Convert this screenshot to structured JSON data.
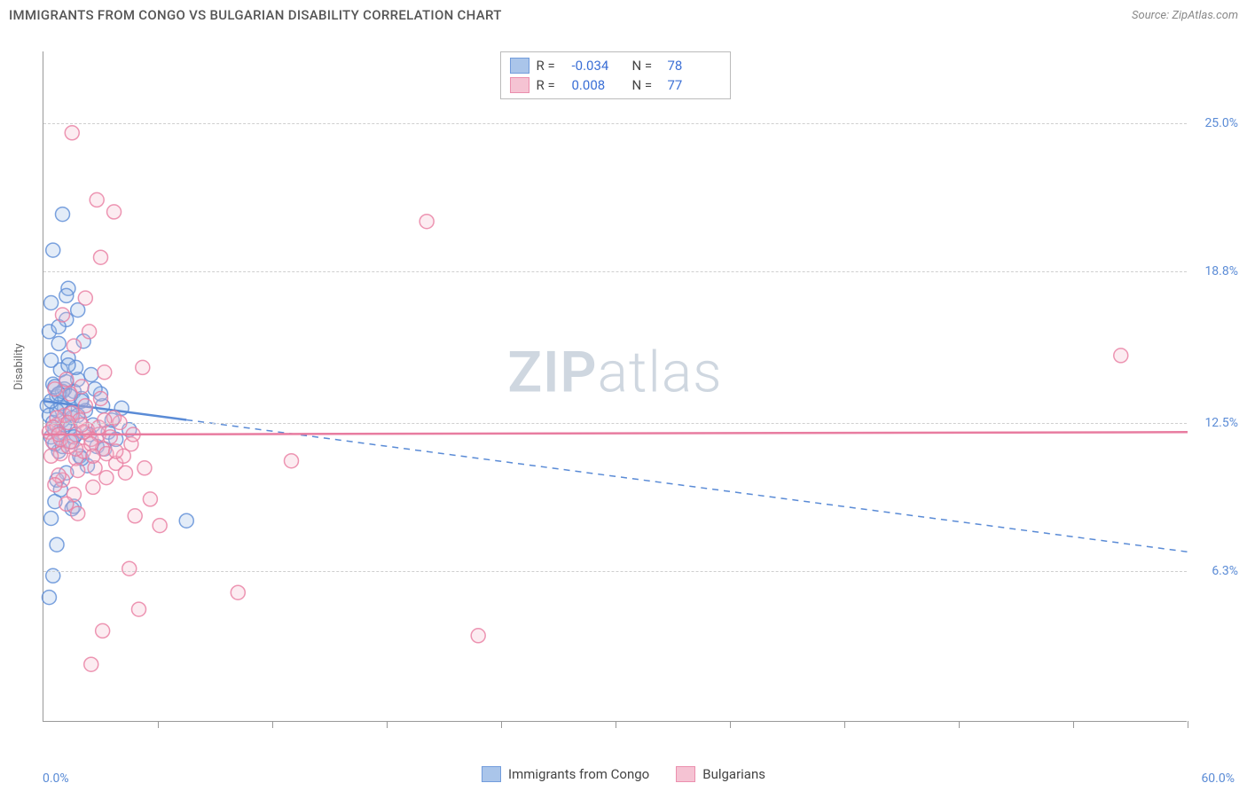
{
  "title": "IMMIGRANTS FROM CONGO VS BULGARIAN DISABILITY CORRELATION CHART",
  "source_label": "Source:",
  "source_name": "ZipAtlas.com",
  "y_axis_label": "Disability",
  "watermark_prefix": "ZIP",
  "watermark_suffix": "atlas",
  "chart": {
    "type": "scatter",
    "xlim": [
      0,
      60
    ],
    "ylim": [
      0,
      28
    ],
    "x_min_label": "0.0%",
    "x_max_label": "60.0%",
    "y_ticks": [
      {
        "value": 6.3,
        "label": "6.3%"
      },
      {
        "value": 12.5,
        "label": "12.5%"
      },
      {
        "value": 18.8,
        "label": "18.8%"
      },
      {
        "value": 25.0,
        "label": "25.0%"
      }
    ],
    "x_tick_positions": [
      6,
      12,
      18,
      24,
      30,
      36,
      42,
      48,
      54,
      60
    ],
    "grid_color": "#cfcfcf",
    "background_color": "#ffffff",
    "marker_radius": 8,
    "marker_stroke_width": 1.5,
    "marker_fill_opacity": 0.28,
    "series": [
      {
        "name": "Immigrants from Congo",
        "color_stroke": "#5a8bd6",
        "color_fill": "#9cbce7",
        "R": "-0.034",
        "N": "78",
        "regression": {
          "x1": 0,
          "y1": 13.4,
          "x2": 60,
          "y2": 7.1,
          "solid_until_x": 7.5
        },
        "points": [
          [
            0.2,
            13.2
          ],
          [
            0.3,
            12.8
          ],
          [
            0.4,
            11.9
          ],
          [
            0.5,
            14.1
          ],
          [
            0.6,
            12.2
          ],
          [
            0.7,
            13.6
          ],
          [
            0.8,
            11.3
          ],
          [
            0.9,
            14.7
          ],
          [
            1.0,
            12.6
          ],
          [
            1.1,
            13.1
          ],
          [
            1.2,
            10.4
          ],
          [
            1.3,
            15.2
          ],
          [
            1.4,
            12.9
          ],
          [
            1.5,
            11.7
          ],
          [
            1.6,
            13.8
          ],
          [
            1.7,
            12.0
          ],
          [
            1.8,
            14.3
          ],
          [
            1.9,
            11.1
          ],
          [
            2.0,
            13.5
          ],
          [
            0.6,
            9.2
          ],
          [
            0.7,
            10.1
          ],
          [
            0.8,
            15.8
          ],
          [
            0.3,
            16.3
          ],
          [
            1.2,
            16.8
          ],
          [
            0.4,
            8.5
          ],
          [
            1.5,
            8.9
          ],
          [
            0.5,
            19.7
          ],
          [
            1.8,
            17.2
          ],
          [
            2.3,
            10.7
          ],
          [
            2.5,
            14.5
          ],
          [
            2.8,
            11.5
          ],
          [
            3.1,
            13.2
          ],
          [
            3.4,
            12.1
          ],
          [
            1.0,
            21.2
          ],
          [
            1.3,
            18.1
          ],
          [
            0.4,
            17.5
          ],
          [
            0.9,
            9.7
          ],
          [
            1.6,
            9.0
          ],
          [
            2.1,
            15.9
          ],
          [
            0.7,
            7.4
          ],
          [
            3.8,
            11.8
          ],
          [
            7.5,
            8.4
          ],
          [
            0.3,
            5.2
          ],
          [
            0.5,
            6.1
          ],
          [
            1.1,
            13.9
          ],
          [
            1.4,
            12.3
          ],
          [
            1.7,
            14.8
          ],
          [
            2.0,
            11.0
          ],
          [
            0.4,
            15.1
          ],
          [
            0.8,
            16.5
          ],
          [
            1.2,
            17.8
          ],
          [
            0.6,
            11.6
          ],
          [
            0.9,
            13.3
          ],
          [
            1.3,
            14.9
          ],
          [
            1.5,
            12.7
          ],
          [
            2.2,
            13.0
          ],
          [
            2.6,
            12.4
          ],
          [
            3.0,
            13.7
          ],
          [
            0.5,
            12.5
          ],
          [
            0.7,
            13.0
          ],
          [
            0.8,
            12.1
          ],
          [
            1.0,
            13.8
          ],
          [
            1.1,
            12.4
          ],
          [
            1.4,
            13.6
          ],
          [
            1.6,
            11.9
          ],
          [
            1.8,
            12.8
          ],
          [
            2.0,
            13.4
          ],
          [
            2.4,
            12.0
          ],
          [
            2.7,
            13.9
          ],
          [
            3.2,
            11.4
          ],
          [
            3.6,
            12.6
          ],
          [
            4.1,
            13.1
          ],
          [
            4.5,
            12.2
          ],
          [
            0.4,
            13.4
          ],
          [
            0.6,
            14.0
          ],
          [
            0.8,
            13.7
          ],
          [
            1.0,
            11.5
          ],
          [
            1.2,
            14.2
          ]
        ]
      },
      {
        "name": "Bulgarians",
        "color_stroke": "#e87ca0",
        "color_fill": "#f4b9cc",
        "R": "0.008",
        "N": "77",
        "regression": {
          "x1": 0,
          "y1": 12.0,
          "x2": 60,
          "y2": 12.1,
          "solid_until_x": 60
        },
        "points": [
          [
            0.3,
            12.1
          ],
          [
            0.5,
            11.7
          ],
          [
            0.7,
            12.4
          ],
          [
            0.9,
            11.2
          ],
          [
            1.1,
            12.8
          ],
          [
            1.3,
            11.5
          ],
          [
            1.5,
            12.9
          ],
          [
            1.7,
            11.0
          ],
          [
            1.9,
            12.6
          ],
          [
            2.1,
            11.3
          ],
          [
            2.3,
            12.2
          ],
          [
            2.5,
            11.8
          ],
          [
            2.7,
            10.6
          ],
          [
            2.9,
            12.0
          ],
          [
            3.1,
            11.4
          ],
          [
            3.3,
            10.2
          ],
          [
            3.5,
            11.9
          ],
          [
            3.8,
            10.8
          ],
          [
            4.0,
            12.5
          ],
          [
            4.3,
            10.4
          ],
          [
            4.6,
            11.6
          ],
          [
            1.0,
            10.1
          ],
          [
            1.4,
            13.7
          ],
          [
            1.8,
            10.5
          ],
          [
            2.2,
            13.2
          ],
          [
            2.6,
            9.8
          ],
          [
            3.0,
            13.5
          ],
          [
            0.6,
            13.9
          ],
          [
            0.8,
            10.3
          ],
          [
            1.2,
            14.3
          ],
          [
            1.6,
            9.5
          ],
          [
            2.0,
            14.0
          ],
          [
            3.2,
            14.6
          ],
          [
            0.4,
            11.1
          ],
          [
            0.7,
            12.7
          ],
          [
            1.5,
            24.6
          ],
          [
            2.8,
            21.8
          ],
          [
            3.7,
            21.3
          ],
          [
            2.2,
            17.7
          ],
          [
            3.0,
            19.4
          ],
          [
            4.8,
            8.6
          ],
          [
            5.2,
            14.8
          ],
          [
            5.6,
            9.3
          ],
          [
            6.1,
            8.2
          ],
          [
            4.5,
            6.4
          ],
          [
            5.0,
            4.7
          ],
          [
            2.5,
            2.4
          ],
          [
            3.1,
            3.8
          ],
          [
            10.2,
            5.4
          ],
          [
            22.8,
            3.6
          ],
          [
            13.0,
            10.9
          ],
          [
            20.1,
            20.9
          ],
          [
            56.5,
            15.3
          ],
          [
            0.5,
            12.3
          ],
          [
            0.9,
            11.8
          ],
          [
            1.3,
            12.5
          ],
          [
            1.7,
            11.4
          ],
          [
            2.1,
            12.1
          ],
          [
            2.5,
            11.6
          ],
          [
            2.9,
            12.3
          ],
          [
            3.3,
            11.2
          ],
          [
            3.7,
            12.7
          ],
          [
            1.0,
            17.0
          ],
          [
            1.6,
            15.7
          ],
          [
            2.4,
            16.3
          ],
          [
            0.6,
            9.9
          ],
          [
            1.2,
            9.1
          ],
          [
            1.8,
            8.7
          ],
          [
            4.2,
            11.1
          ],
          [
            4.7,
            12.0
          ],
          [
            5.3,
            10.6
          ],
          [
            0.8,
            12.0
          ],
          [
            1.4,
            11.7
          ],
          [
            2.0,
            12.4
          ],
          [
            2.6,
            11.1
          ],
          [
            3.2,
            12.6
          ],
          [
            3.8,
            11.3
          ]
        ]
      }
    ]
  },
  "colors": {
    "title_text": "#555555",
    "source_text": "#888888",
    "axis_label": "#666666",
    "tick_label": "#5a8bd6",
    "watermark": "#a9b8c8"
  }
}
